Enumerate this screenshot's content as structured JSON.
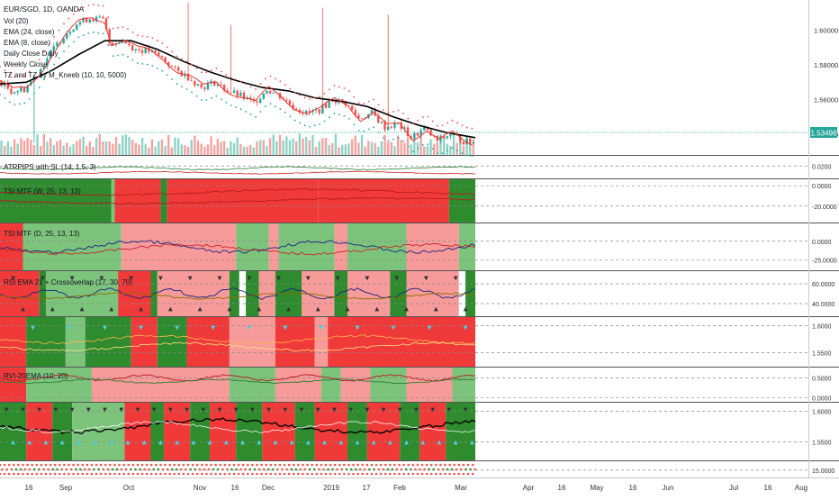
{
  "header": {
    "symbol": "EUR/SGD, 1D, OANDA",
    "main_legend": [
      "Vol (20)",
      "EMA (24, close)",
      "EMA (8, close)",
      "Daily Close Daily",
      "Weekly Close",
      "TZ and TZ by M_Kneeb (10, 10, 5000)"
    ]
  },
  "colors": {
    "up": "#26a69a",
    "down": "#ef5350",
    "green_bg": "#2e8b2e",
    "light_green_bg": "#7cc47c",
    "red_bg": "#f03a3a",
    "light_red_bg": "#f79a9a",
    "ema24": "#000000",
    "ema8": "#e53935",
    "price_badge": "#26a69a"
  },
  "price_badge": "1.53496",
  "chart_data": [
    {
      "type": "candlestick",
      "pane": "price",
      "title": "EUR/SGD, 1D, OANDA",
      "ylim": [
        1.528,
        1.6175
      ],
      "y_ticks": [
        "1.60000",
        "1.58000",
        "1.56000",
        "1.54000"
      ],
      "y_tick_values": [
        1.6,
        1.58,
        1.56,
        1.54
      ],
      "x_tick_labels": [
        "16",
        "Sep",
        "Oct",
        "Nov",
        "16",
        "Dec",
        "2019",
        "17",
        "Feb",
        "Mar",
        "Apr",
        "16",
        "May",
        "16",
        "Jun",
        "Jul",
        "16",
        "Aug"
      ],
      "close_path": [
        [
          0,
          1.571
        ],
        [
          4,
          1.565
        ],
        [
          8,
          1.566
        ],
        [
          12,
          1.575
        ],
        [
          16,
          1.587
        ],
        [
          20,
          1.597
        ],
        [
          24,
          1.604
        ],
        [
          28,
          1.607
        ],
        [
          32,
          1.606
        ],
        [
          34,
          1.593
        ],
        [
          38,
          1.594
        ],
        [
          42,
          1.589
        ],
        [
          46,
          1.588
        ],
        [
          50,
          1.584
        ],
        [
          54,
          1.577
        ],
        [
          58,
          1.573
        ],
        [
          62,
          1.567
        ],
        [
          66,
          1.57
        ],
        [
          70,
          1.565
        ],
        [
          74,
          1.562
        ],
        [
          78,
          1.558
        ],
        [
          82,
          1.566
        ],
        [
          86,
          1.562
        ],
        [
          90,
          1.556
        ],
        [
          94,
          1.552
        ],
        [
          98,
          1.554
        ],
        [
          102,
          1.56
        ],
        [
          106,
          1.558
        ],
        [
          110,
          1.549
        ],
        [
          114,
          1.552
        ],
        [
          118,
          1.544
        ],
        [
          122,
          1.546
        ],
        [
          126,
          1.538
        ],
        [
          130,
          1.543
        ],
        [
          134,
          1.536
        ],
        [
          138,
          1.54
        ],
        [
          142,
          1.536
        ],
        [
          145,
          1.535
        ]
      ],
      "ema24_path": [
        [
          0,
          1.569
        ],
        [
          8,
          1.57
        ],
        [
          16,
          1.577
        ],
        [
          24,
          1.586
        ],
        [
          32,
          1.594
        ],
        [
          40,
          1.594
        ],
        [
          48,
          1.589
        ],
        [
          56,
          1.582
        ],
        [
          64,
          1.576
        ],
        [
          72,
          1.571
        ],
        [
          80,
          1.567
        ],
        [
          88,
          1.565
        ],
        [
          96,
          1.561
        ],
        [
          104,
          1.559
        ],
        [
          112,
          1.556
        ],
        [
          120,
          1.55
        ],
        [
          128,
          1.545
        ],
        [
          136,
          1.541
        ],
        [
          145,
          1.538
        ]
      ],
      "volume_range": [
        0,
        100
      ],
      "volume_note": "Vol (20)"
    },
    {
      "type": "line",
      "pane": "atr",
      "title": "ATRPIPS with SL (14, 1.5, 3)",
      "y_ticks": [
        "0.0200"
      ],
      "ylim": [
        0.01,
        0.03
      ]
    },
    {
      "type": "heatmap",
      "pane": "tsi_w",
      "title": "TSI MTF (W, 25, 13, 13)",
      "y_ticks": [
        "0.0000",
        "-20.0000"
      ],
      "bands": [
        [
          "green",
          0,
          34
        ],
        [
          "light_green",
          34,
          35
        ],
        [
          "red",
          35,
          49
        ],
        [
          "green",
          49,
          51
        ],
        [
          "red",
          51,
          97
        ],
        [
          "red",
          97,
          137
        ],
        [
          "green",
          137,
          145
        ]
      ]
    },
    {
      "type": "heatmap",
      "pane": "tsi_d",
      "title": "TSI MTF (D, 25, 13, 13)",
      "y_ticks": [
        "0.0000",
        "-25.0000"
      ],
      "bands": [
        [
          "red",
          0,
          7
        ],
        [
          "light_green",
          7,
          37
        ],
        [
          "light_red",
          37,
          72
        ],
        [
          "light_green",
          72,
          82
        ],
        [
          "light_red",
          82,
          85
        ],
        [
          "light_green",
          85,
          102
        ],
        [
          "light_red",
          102,
          106
        ],
        [
          "light_green",
          106,
          124
        ],
        [
          "light_red",
          124,
          140
        ],
        [
          "light_green",
          140,
          145
        ]
      ]
    },
    {
      "type": "heatmap",
      "pane": "rsi",
      "title": "RSI EMA 21 + Crossoverlap (17, 30, 70)",
      "y_ticks": [
        "60.0000",
        "40.0000"
      ],
      "bands": [
        [
          "red",
          0,
          12
        ],
        [
          "green",
          12,
          14
        ],
        [
          "light_green",
          14,
          36
        ],
        [
          "red",
          36,
          46
        ],
        [
          "green",
          46,
          48
        ],
        [
          "light_red",
          48,
          70
        ],
        [
          "green",
          70,
          73
        ],
        [
          "white",
          73,
          75
        ],
        [
          "green",
          75,
          79
        ],
        [
          "light_red",
          79,
          84
        ],
        [
          "green",
          84,
          92
        ],
        [
          "light_red",
          92,
          102
        ],
        [
          "green",
          102,
          106
        ],
        [
          "light_red",
          106,
          119
        ],
        [
          "green",
          119,
          124
        ],
        [
          "light_red",
          124,
          140
        ],
        [
          "white",
          140,
          142
        ],
        [
          "green",
          142,
          145
        ]
      ]
    },
    {
      "type": "heatmap",
      "pane": "ma_cloud",
      "title": "",
      "y_ticks": [
        "1.6000",
        "1.5500"
      ],
      "bands": [
        [
          "red",
          0,
          8
        ],
        [
          "green",
          8,
          20
        ],
        [
          "light_green",
          20,
          26
        ],
        [
          "green",
          26,
          40
        ],
        [
          "red",
          40,
          48
        ],
        [
          "green",
          48,
          57
        ],
        [
          "red",
          57,
          70
        ],
        [
          "light_red",
          70,
          84
        ],
        [
          "red",
          84,
          96
        ],
        [
          "light_red",
          96,
          100
        ],
        [
          "red",
          100,
          145
        ]
      ]
    },
    {
      "type": "heatmap",
      "pane": "rvi",
      "title": "RVI-20EMA (10, 20)",
      "y_ticks": [
        "0.5000",
        "0.0000"
      ],
      "bands": [
        [
          "red",
          0,
          8
        ],
        [
          "light_green",
          8,
          28
        ],
        [
          "light_red",
          28,
          70
        ],
        [
          "light_green",
          70,
          84
        ],
        [
          "light_red",
          84,
          98
        ],
        [
          "light_green",
          98,
          104
        ],
        [
          "light_red",
          104,
          113
        ],
        [
          "light_green",
          113,
          124
        ],
        [
          "light_red",
          124,
          138
        ],
        [
          "light_green",
          138,
          145
        ]
      ]
    },
    {
      "type": "heatmap",
      "pane": "ma_cross",
      "title": "",
      "y_ticks": [
        "1.6000",
        "1.5500"
      ],
      "bands": [
        [
          "green",
          0,
          8
        ],
        [
          "red",
          8,
          16
        ],
        [
          "green",
          16,
          22
        ],
        [
          "light_green",
          22,
          38
        ],
        [
          "red",
          38,
          46
        ],
        [
          "green",
          46,
          50
        ],
        [
          "red",
          50,
          58
        ],
        [
          "green",
          58,
          64
        ],
        [
          "red",
          64,
          72
        ],
        [
          "green",
          72,
          80
        ],
        [
          "red",
          80,
          90
        ],
        [
          "green",
          90,
          96
        ],
        [
          "red",
          96,
          106
        ],
        [
          "green",
          106,
          112
        ],
        [
          "red",
          112,
          122
        ],
        [
          "green",
          122,
          128
        ],
        [
          "red",
          128,
          136
        ],
        [
          "green",
          136,
          145
        ]
      ]
    },
    {
      "type": "scatter",
      "pane": "bottom",
      "title": "",
      "y_ticks": [
        "15.0000"
      ]
    }
  ]
}
